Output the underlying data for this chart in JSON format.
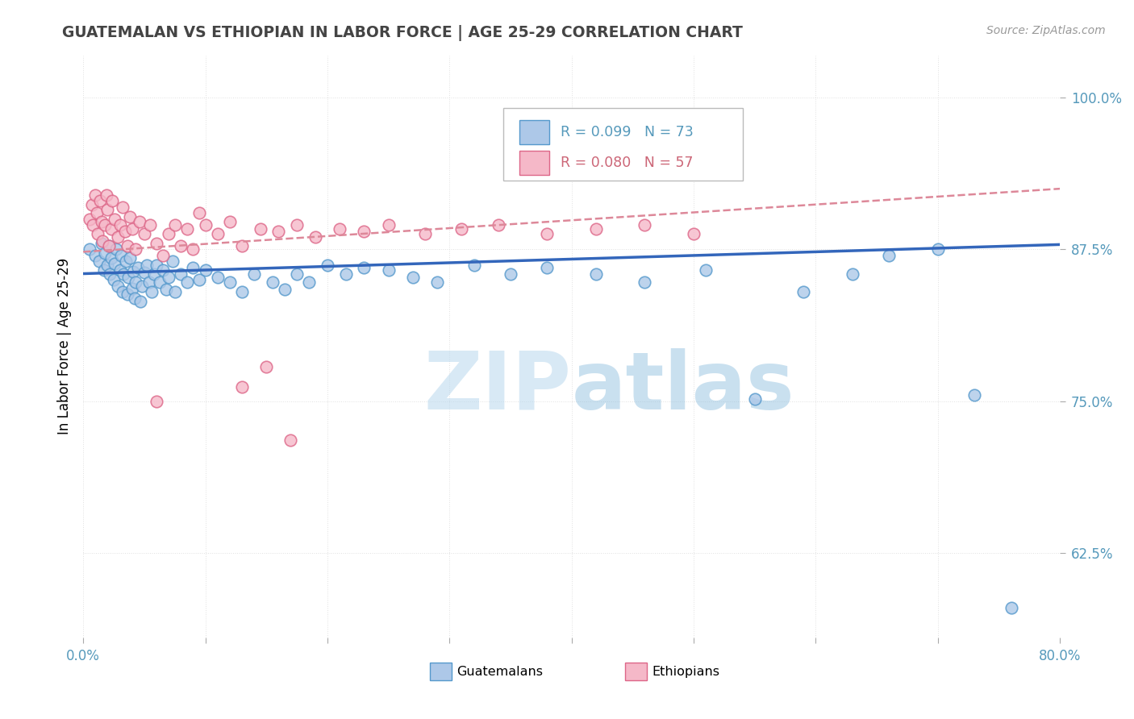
{
  "title": "GUATEMALAN VS ETHIOPIAN IN LABOR FORCE | AGE 25-29 CORRELATION CHART",
  "source": "Source: ZipAtlas.com",
  "ylabel": "In Labor Force | Age 25-29",
  "xlim": [
    0.0,
    0.8
  ],
  "ylim": [
    0.555,
    1.035
  ],
  "yticks": [
    0.625,
    0.75,
    0.875,
    1.0
  ],
  "yticklabels": [
    "62.5%",
    "75.0%",
    "87.5%",
    "100.0%"
  ],
  "xtick_positions": [
    0.0,
    0.1,
    0.2,
    0.3,
    0.4,
    0.5,
    0.6,
    0.7,
    0.8
  ],
  "guatemalan_fill": "#adc8e8",
  "guatemalan_edge": "#5599cc",
  "ethiopian_fill": "#f5b8c8",
  "ethiopian_edge": "#dd6688",
  "blue_line_color": "#3366bb",
  "pink_line_color": "#dd8899",
  "watermark_color": "#d0e8f4",
  "title_color": "#444444",
  "tick_color": "#5599bb",
  "grid_color": "#dddddd",
  "guatemalan_x": [
    0.005,
    0.01,
    0.013,
    0.015,
    0.017,
    0.018,
    0.02,
    0.021,
    0.022,
    0.023,
    0.025,
    0.026,
    0.027,
    0.028,
    0.03,
    0.031,
    0.032,
    0.033,
    0.035,
    0.036,
    0.037,
    0.038,
    0.04,
    0.041,
    0.042,
    0.043,
    0.045,
    0.047,
    0.048,
    0.05,
    0.052,
    0.054,
    0.056,
    0.058,
    0.06,
    0.063,
    0.065,
    0.068,
    0.07,
    0.073,
    0.075,
    0.08,
    0.085,
    0.09,
    0.095,
    0.1,
    0.11,
    0.12,
    0.13,
    0.14,
    0.155,
    0.165,
    0.175,
    0.185,
    0.2,
    0.215,
    0.23,
    0.25,
    0.27,
    0.29,
    0.32,
    0.35,
    0.38,
    0.42,
    0.46,
    0.51,
    0.55,
    0.59,
    0.63,
    0.66,
    0.7,
    0.73,
    0.76
  ],
  "guatemalan_y": [
    0.875,
    0.87,
    0.865,
    0.88,
    0.858,
    0.872,
    0.862,
    0.878,
    0.855,
    0.868,
    0.85,
    0.863,
    0.875,
    0.845,
    0.858,
    0.87,
    0.84,
    0.855,
    0.865,
    0.838,
    0.852,
    0.868,
    0.843,
    0.857,
    0.835,
    0.848,
    0.86,
    0.832,
    0.845,
    0.856,
    0.862,
    0.848,
    0.84,
    0.855,
    0.862,
    0.848,
    0.858,
    0.842,
    0.852,
    0.865,
    0.84,
    0.855,
    0.848,
    0.86,
    0.85,
    0.858,
    0.852,
    0.848,
    0.84,
    0.855,
    0.848,
    0.842,
    0.855,
    0.848,
    0.862,
    0.855,
    0.86,
    0.858,
    0.852,
    0.848,
    0.862,
    0.855,
    0.86,
    0.855,
    0.848,
    0.858,
    0.752,
    0.84,
    0.855,
    0.87,
    0.875,
    0.755,
    0.58
  ],
  "ethiopian_x": [
    0.005,
    0.007,
    0.008,
    0.01,
    0.011,
    0.012,
    0.014,
    0.015,
    0.016,
    0.018,
    0.019,
    0.02,
    0.021,
    0.023,
    0.024,
    0.026,
    0.028,
    0.03,
    0.032,
    0.034,
    0.036,
    0.038,
    0.04,
    0.043,
    0.046,
    0.05,
    0.055,
    0.06,
    0.065,
    0.07,
    0.075,
    0.08,
    0.085,
    0.09,
    0.095,
    0.1,
    0.11,
    0.12,
    0.13,
    0.145,
    0.16,
    0.175,
    0.19,
    0.21,
    0.23,
    0.25,
    0.28,
    0.31,
    0.34,
    0.38,
    0.42,
    0.46,
    0.5,
    0.13,
    0.15,
    0.17,
    0.06
  ],
  "ethiopian_y": [
    0.9,
    0.912,
    0.895,
    0.92,
    0.905,
    0.888,
    0.915,
    0.898,
    0.882,
    0.895,
    0.92,
    0.908,
    0.878,
    0.892,
    0.915,
    0.9,
    0.885,
    0.895,
    0.91,
    0.89,
    0.878,
    0.902,
    0.892,
    0.875,
    0.898,
    0.888,
    0.895,
    0.88,
    0.87,
    0.888,
    0.895,
    0.878,
    0.892,
    0.875,
    0.905,
    0.895,
    0.888,
    0.898,
    0.878,
    0.892,
    0.89,
    0.895,
    0.885,
    0.892,
    0.89,
    0.895,
    0.888,
    0.892,
    0.895,
    0.888,
    0.892,
    0.895,
    0.888,
    0.762,
    0.778,
    0.718,
    0.75
  ],
  "blue_line_slope": 0.03,
  "blue_line_intercept": 0.855,
  "pink_line_slope": 0.065,
  "pink_line_intercept": 0.873
}
